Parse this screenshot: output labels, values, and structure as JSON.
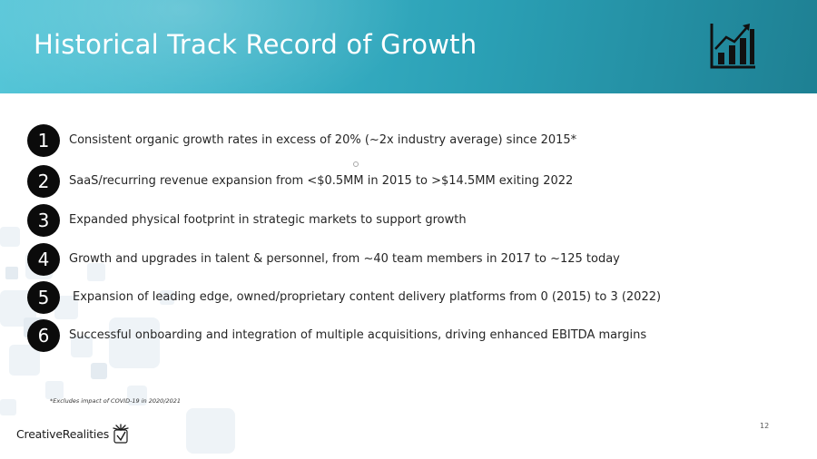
{
  "header": {
    "title": "Historical Track Record of Growth",
    "icon": "growth-bar-chart-icon"
  },
  "items": [
    {
      "number": "1",
      "text": "Consistent organic growth rates in excess of 20% (~2x industry average) since 2015*"
    },
    {
      "number": "2",
      "text": "SaaS/recurring revenue expansion from <$0.5MM in 2015 to >$14.5MM exiting 2022"
    },
    {
      "number": "3",
      "text": "Expanded physical footprint in strategic markets to support growth"
    },
    {
      "number": "4",
      "text": "Growth and upgrades in talent & personnel, from ~40 team members in 2017 to ~125 today"
    },
    {
      "number": "5",
      "text": "Expansion of leading edge, owned/proprietary content delivery platforms from 0 (2015) to 3 (2022)"
    },
    {
      "number": "6",
      "text": "Successful onboarding and integration of multiple acquisitions, driving enhanced EBITDA margins"
    }
  ],
  "footnote": "*Excludes impact of COVID-19 in 2020/2021",
  "page_number": "12",
  "logo": {
    "text": "CreativeRealities",
    "icon": "creative-realities-logo-icon"
  },
  "colors": {
    "header_start": "#56c6d8",
    "header_end": "#1e8093",
    "number_circle": "#0b0b0b",
    "body_text": "#262626"
  }
}
